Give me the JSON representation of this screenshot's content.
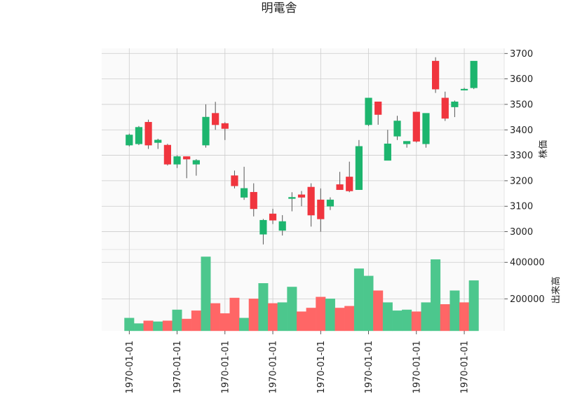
{
  "title": "明電舎",
  "colors": {
    "up": "#1db56e",
    "down": "#f0353e",
    "up_volume": "#4cc78d",
    "down_volume": "#ff6666",
    "wick": "#555555",
    "panel_bg": "#fafafa",
    "grid": "#cccccc"
  },
  "chart_data": [
    {
      "type": "candlestick",
      "panel": "price",
      "ylabel": "株価",
      "ylim": [
        2930,
        3720
      ],
      "yticks": [
        3000,
        3100,
        3200,
        3300,
        3400,
        3500,
        3600,
        3700
      ],
      "ytick_labels": [
        "3000",
        "3100",
        "3200",
        "3300",
        "3400",
        "3500",
        "3600",
        "3700"
      ],
      "xtick_indices": [
        0,
        5,
        10,
        15,
        20,
        25,
        30,
        35
      ],
      "xtick_labels": [
        "1970-01-01",
        "1970-01-01",
        "1970-01-01",
        "1970-01-01",
        "1970-01-01",
        "1970-01-01",
        "1970-01-01",
        "1970-01-01"
      ],
      "grid": true,
      "candles": [
        {
          "open": 3340,
          "high": 3385,
          "low": 3335,
          "close": 3380
        },
        {
          "open": 3345,
          "high": 3415,
          "low": 3340,
          "close": 3410
        },
        {
          "open": 3430,
          "high": 3440,
          "low": 3325,
          "close": 3340
        },
        {
          "open": 3350,
          "high": 3365,
          "low": 3325,
          "close": 3360
        },
        {
          "open": 3340,
          "high": 3345,
          "low": 3260,
          "close": 3265
        },
        {
          "open": 3265,
          "high": 3300,
          "low": 3250,
          "close": 3295
        },
        {
          "open": 3295,
          "high": 3295,
          "low": 3210,
          "close": 3285
        },
        {
          "open": 3265,
          "high": 3285,
          "low": 3220,
          "close": 3280
        },
        {
          "open": 3340,
          "high": 3500,
          "low": 3330,
          "close": 3450
        },
        {
          "open": 3465,
          "high": 3510,
          "low": 3400,
          "close": 3420
        },
        {
          "open": 3425,
          "high": 3430,
          "low": 3360,
          "close": 3405
        },
        {
          "open": 3220,
          "high": 3240,
          "low": 3170,
          "close": 3180
        },
        {
          "open": 3135,
          "high": 3255,
          "low": 3125,
          "close": 3170
        },
        {
          "open": 3155,
          "high": 3190,
          "low": 3060,
          "close": 3090
        },
        {
          "open": 2990,
          "high": 3050,
          "low": 2950,
          "close": 3045
        },
        {
          "open": 3070,
          "high": 3090,
          "low": 3030,
          "close": 3045
        },
        {
          "open": 3005,
          "high": 3065,
          "low": 2985,
          "close": 3040
        },
        {
          "open": 3130,
          "high": 3155,
          "low": 3080,
          "close": 3135
        },
        {
          "open": 3145,
          "high": 3160,
          "low": 3100,
          "close": 3135
        },
        {
          "open": 3175,
          "high": 3190,
          "low": 3020,
          "close": 3065
        },
        {
          "open": 3125,
          "high": 3170,
          "low": 3000,
          "close": 3050
        },
        {
          "open": 3100,
          "high": 3135,
          "low": 3085,
          "close": 3125
        },
        {
          "open": 3185,
          "high": 3235,
          "low": 3165,
          "close": 3165
        },
        {
          "open": 3215,
          "high": 3275,
          "low": 3155,
          "close": 3160
        },
        {
          "open": 3165,
          "high": 3360,
          "low": 3165,
          "close": 3335
        },
        {
          "open": 3420,
          "high": 3525,
          "low": 3415,
          "close": 3525
        },
        {
          "open": 3510,
          "high": 3510,
          "low": 3420,
          "close": 3460
        },
        {
          "open": 3280,
          "high": 3400,
          "low": 3280,
          "close": 3345
        },
        {
          "open": 3375,
          "high": 3455,
          "low": 3360,
          "close": 3435
        },
        {
          "open": 3345,
          "high": 3355,
          "low": 3330,
          "close": 3355
        },
        {
          "open": 3470,
          "high": 3470,
          "low": 3350,
          "close": 3355
        },
        {
          "open": 3345,
          "high": 3465,
          "low": 3330,
          "close": 3465
        },
        {
          "open": 3670,
          "high": 3685,
          "low": 3545,
          "close": 3560
        },
        {
          "open": 3525,
          "high": 3550,
          "low": 3435,
          "close": 3445
        },
        {
          "open": 3490,
          "high": 3515,
          "low": 3450,
          "close": 3510
        },
        {
          "open": 3560,
          "high": 3565,
          "low": 3555,
          "close": 3560
        },
        {
          "open": 3565,
          "high": 3670,
          "low": 3560,
          "close": 3670
        }
      ]
    },
    {
      "type": "bar",
      "panel": "volume",
      "ylabel": "出来高",
      "ylim": [
        25000,
        470000
      ],
      "yticks": [
        200000,
        400000
      ],
      "ytick_labels": [
        "200000",
        "400000"
      ],
      "grid": true,
      "values": [
        95000,
        65000,
        80000,
        75000,
        80000,
        140000,
        90000,
        135000,
        430000,
        175000,
        120000,
        205000,
        95000,
        200000,
        285000,
        175000,
        180000,
        265000,
        130000,
        150000,
        210000,
        200000,
        150000,
        160000,
        365000,
        325000,
        245000,
        180000,
        135000,
        140000,
        130000,
        180000,
        415000,
        170000,
        245000,
        180000,
        300000
      ],
      "directions": [
        "up",
        "up",
        "down",
        "up",
        "down",
        "up",
        "down",
        "down",
        "up",
        "down",
        "down",
        "down",
        "up",
        "down",
        "up",
        "down",
        "up",
        "up",
        "down",
        "down",
        "down",
        "up",
        "down",
        "down",
        "up",
        "up",
        "down",
        "up",
        "up",
        "up",
        "down",
        "up",
        "up",
        "down",
        "up",
        "down",
        "up"
      ]
    }
  ]
}
